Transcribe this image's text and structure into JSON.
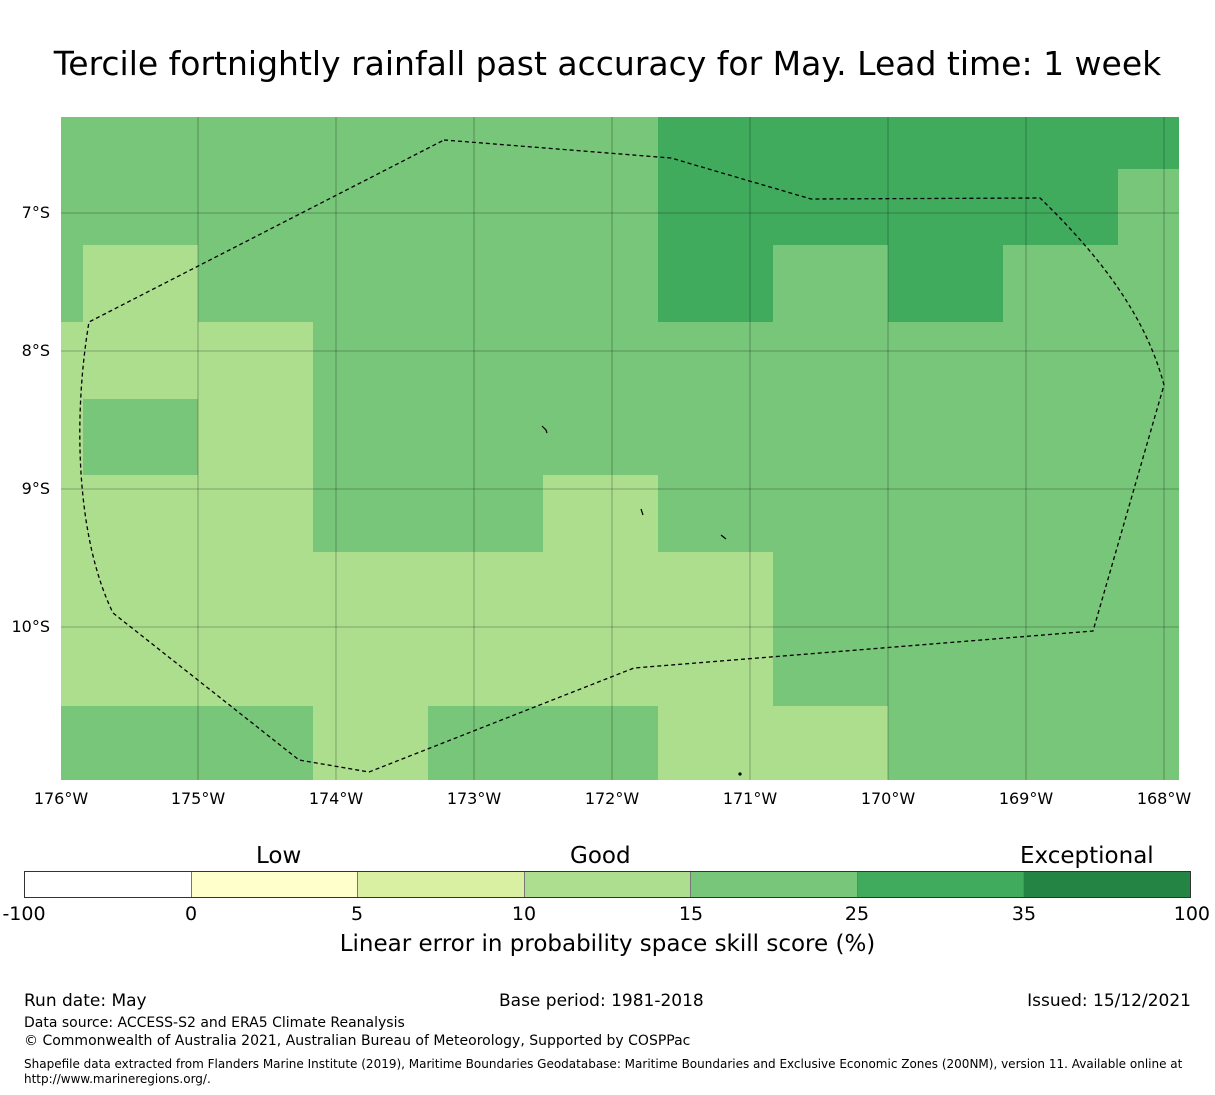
{
  "title": "Tercile fortnightly rainfall past accuracy for May. Lead time: 1 week",
  "map": {
    "lat_labels": [
      "7°S",
      "8°S",
      "9°S",
      "10°S"
    ],
    "lon_labels": [
      "176°W",
      "175°W",
      "174°W",
      "173°W",
      "172°W",
      "171°W",
      "170°W",
      "169°W",
      "168°W"
    ],
    "lon_range": [
      -176,
      -167.9
    ],
    "lat_range": [
      -11.1,
      -6.3
    ],
    "grid": true,
    "colors": {
      "good_light": "#acde8e",
      "good": "#78c679",
      "very_good": "#40ab5d",
      "boundary": "#000000"
    }
  },
  "colorbar": {
    "ticks": [
      "-100",
      "0",
      "5",
      "10",
      "15",
      "25",
      "35",
      "100"
    ],
    "colors": [
      "#ffffff",
      "#ffffcc",
      "#d9f0a3",
      "#addd8e",
      "#78c679",
      "#41ab5d",
      "#238443"
    ],
    "categories": {
      "low": "Low",
      "good": "Good",
      "exceptional": "Exceptional"
    },
    "label": "Linear error in probability space skill score (%)"
  },
  "footer": {
    "run_date": "Run date: May",
    "base_period": "Base period: 1981-2018",
    "issued": "Issued: 15/12/2021",
    "data_source": "Data source: ACCESS-S2 and ERA5 Climate Reanalysis",
    "copyright": "© Commonwealth of Australia 2021, Australian Bureau of Meteorology, Supported by COSPPac",
    "shapefile": "Shapefile data extracted from Flanders Marine Institute (2019), Maritime Boundaries Geodatabase: Maritime Boundaries and Exclusive Economic Zones (200NM), version 11. Available online at http://www.marineregions.org/."
  }
}
